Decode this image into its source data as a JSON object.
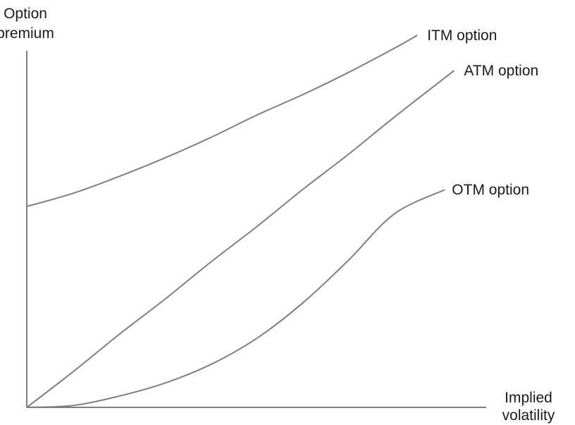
{
  "chart_data": {
    "type": "line",
    "title": "",
    "xlabel_lines": [
      "Implied",
      "volatility"
    ],
    "ylabel_lines": [
      "Option",
      "premium"
    ],
    "xlim": [
      0,
      100
    ],
    "ylim": [
      0,
      100
    ],
    "ticks": "none",
    "grid": false,
    "legend": "none",
    "line_color": "#7f7f7f",
    "series": [
      {
        "name": "ITM option",
        "x": [
          0,
          10,
          20,
          30,
          40,
          50,
          60,
          70,
          80,
          85
        ],
        "y": [
          54,
          57.5,
          62,
          67,
          72.5,
          78.5,
          84,
          90,
          96.5,
          100
        ]
      },
      {
        "name": "ATM option",
        "x": [
          0,
          10,
          20,
          30,
          40,
          50,
          60,
          70,
          80,
          93
        ],
        "y": [
          0,
          9.5,
          19.5,
          29,
          39,
          48.5,
          58.5,
          68,
          78,
          90.5
        ]
      },
      {
        "name": "OTM option",
        "x": [
          0,
          10,
          20,
          30,
          40,
          50,
          60,
          70,
          80,
          91
        ],
        "y": [
          0,
          0.5,
          3,
          6.5,
          11.5,
          18.5,
          28,
          39.5,
          52,
          58.5
        ]
      }
    ]
  }
}
